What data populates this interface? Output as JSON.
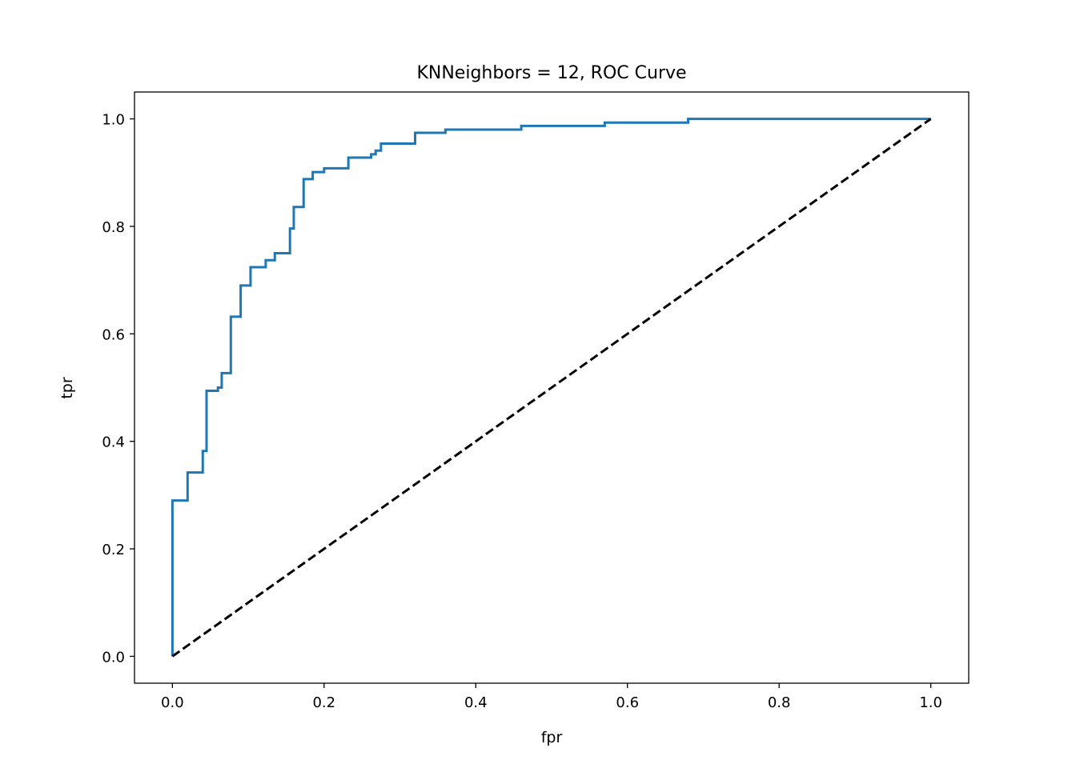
{
  "chart_data": {
    "type": "line",
    "title": "KNNeighbors = 12, ROC Curve",
    "xlabel": "fpr",
    "ylabel": "tpr",
    "xlim": [
      -0.05,
      1.05
    ],
    "ylim": [
      -0.05,
      1.05
    ],
    "xticks": [
      "0.0",
      "0.2",
      "0.4",
      "0.6",
      "0.8",
      "1.0"
    ],
    "yticks": [
      "0.0",
      "0.2",
      "0.4",
      "0.6",
      "0.8",
      "1.0"
    ],
    "grid": false,
    "legend": "none",
    "series": [
      {
        "color": "#1f77b4",
        "style": "solid",
        "x": [
          0.0,
          0.0,
          0.02,
          0.02,
          0.04,
          0.04,
          0.045,
          0.045,
          0.06,
          0.06,
          0.065,
          0.065,
          0.077,
          0.077,
          0.09,
          0.09,
          0.103,
          0.103,
          0.123,
          0.123,
          0.135,
          0.135,
          0.155,
          0.155,
          0.16,
          0.16,
          0.173,
          0.173,
          0.185,
          0.185,
          0.2,
          0.2,
          0.232,
          0.232,
          0.262,
          0.262,
          0.268,
          0.268,
          0.275,
          0.275,
          0.32,
          0.32,
          0.36,
          0.36,
          0.46,
          0.46,
          0.57,
          0.57,
          0.68,
          0.68,
          1.0
        ],
        "y": [
          0.0,
          0.29,
          0.29,
          0.342,
          0.342,
          0.382,
          0.382,
          0.494,
          0.494,
          0.5,
          0.5,
          0.527,
          0.527,
          0.632,
          0.632,
          0.69,
          0.69,
          0.724,
          0.724,
          0.737,
          0.737,
          0.75,
          0.75,
          0.796,
          0.796,
          0.836,
          0.836,
          0.888,
          0.888,
          0.901,
          0.901,
          0.908,
          0.908,
          0.928,
          0.928,
          0.934,
          0.934,
          0.941,
          0.941,
          0.954,
          0.954,
          0.974,
          0.974,
          0.98,
          0.98,
          0.987,
          0.987,
          0.993,
          0.993,
          1.0,
          1.0
        ]
      },
      {
        "color": "#000000",
        "style": "dashed",
        "x": [
          0.0,
          1.0
        ],
        "y": [
          0.0,
          1.0
        ]
      }
    ]
  }
}
